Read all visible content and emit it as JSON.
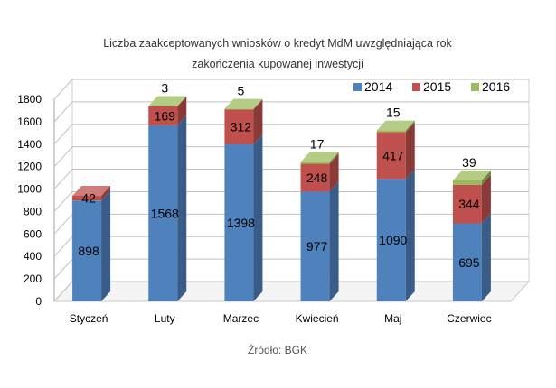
{
  "chart_data": {
    "type": "bar",
    "stacked": true,
    "three_d": true,
    "title_lines": [
      "Liczba zaakceptowanych wniosków o kredyt MdM uwzględniająca rok",
      "zakończenia kupowanej inwestycji"
    ],
    "categories": [
      "Styczeń",
      "Luty",
      "Marzec",
      "Kwiecień",
      "Maj",
      "Czerwiec"
    ],
    "series": [
      {
        "name": "2014",
        "color": "#4F81BD",
        "values": [
          898,
          1568,
          1398,
          977,
          1090,
          695
        ]
      },
      {
        "name": "2015",
        "color": "#C0504D",
        "values": [
          42,
          169,
          312,
          248,
          417,
          344
        ]
      },
      {
        "name": "2016",
        "color": "#9BBB59",
        "values": [
          0,
          3,
          5,
          17,
          15,
          39
        ]
      }
    ],
    "data_labels": [
      [
        "898",
        "1568",
        "1398",
        "977",
        "1090",
        "695"
      ],
      [
        "42",
        "169",
        "312",
        "248",
        "417",
        "344"
      ],
      [
        "",
        "3",
        "5",
        "17",
        "15",
        "39"
      ]
    ],
    "ylim": [
      0,
      1800
    ],
    "y_ticks": [
      0,
      200,
      400,
      600,
      800,
      1000,
      1200,
      1400,
      1600,
      1800
    ],
    "grid": true,
    "legend_position": "top-right",
    "source_text": "Źródło: BGK"
  }
}
